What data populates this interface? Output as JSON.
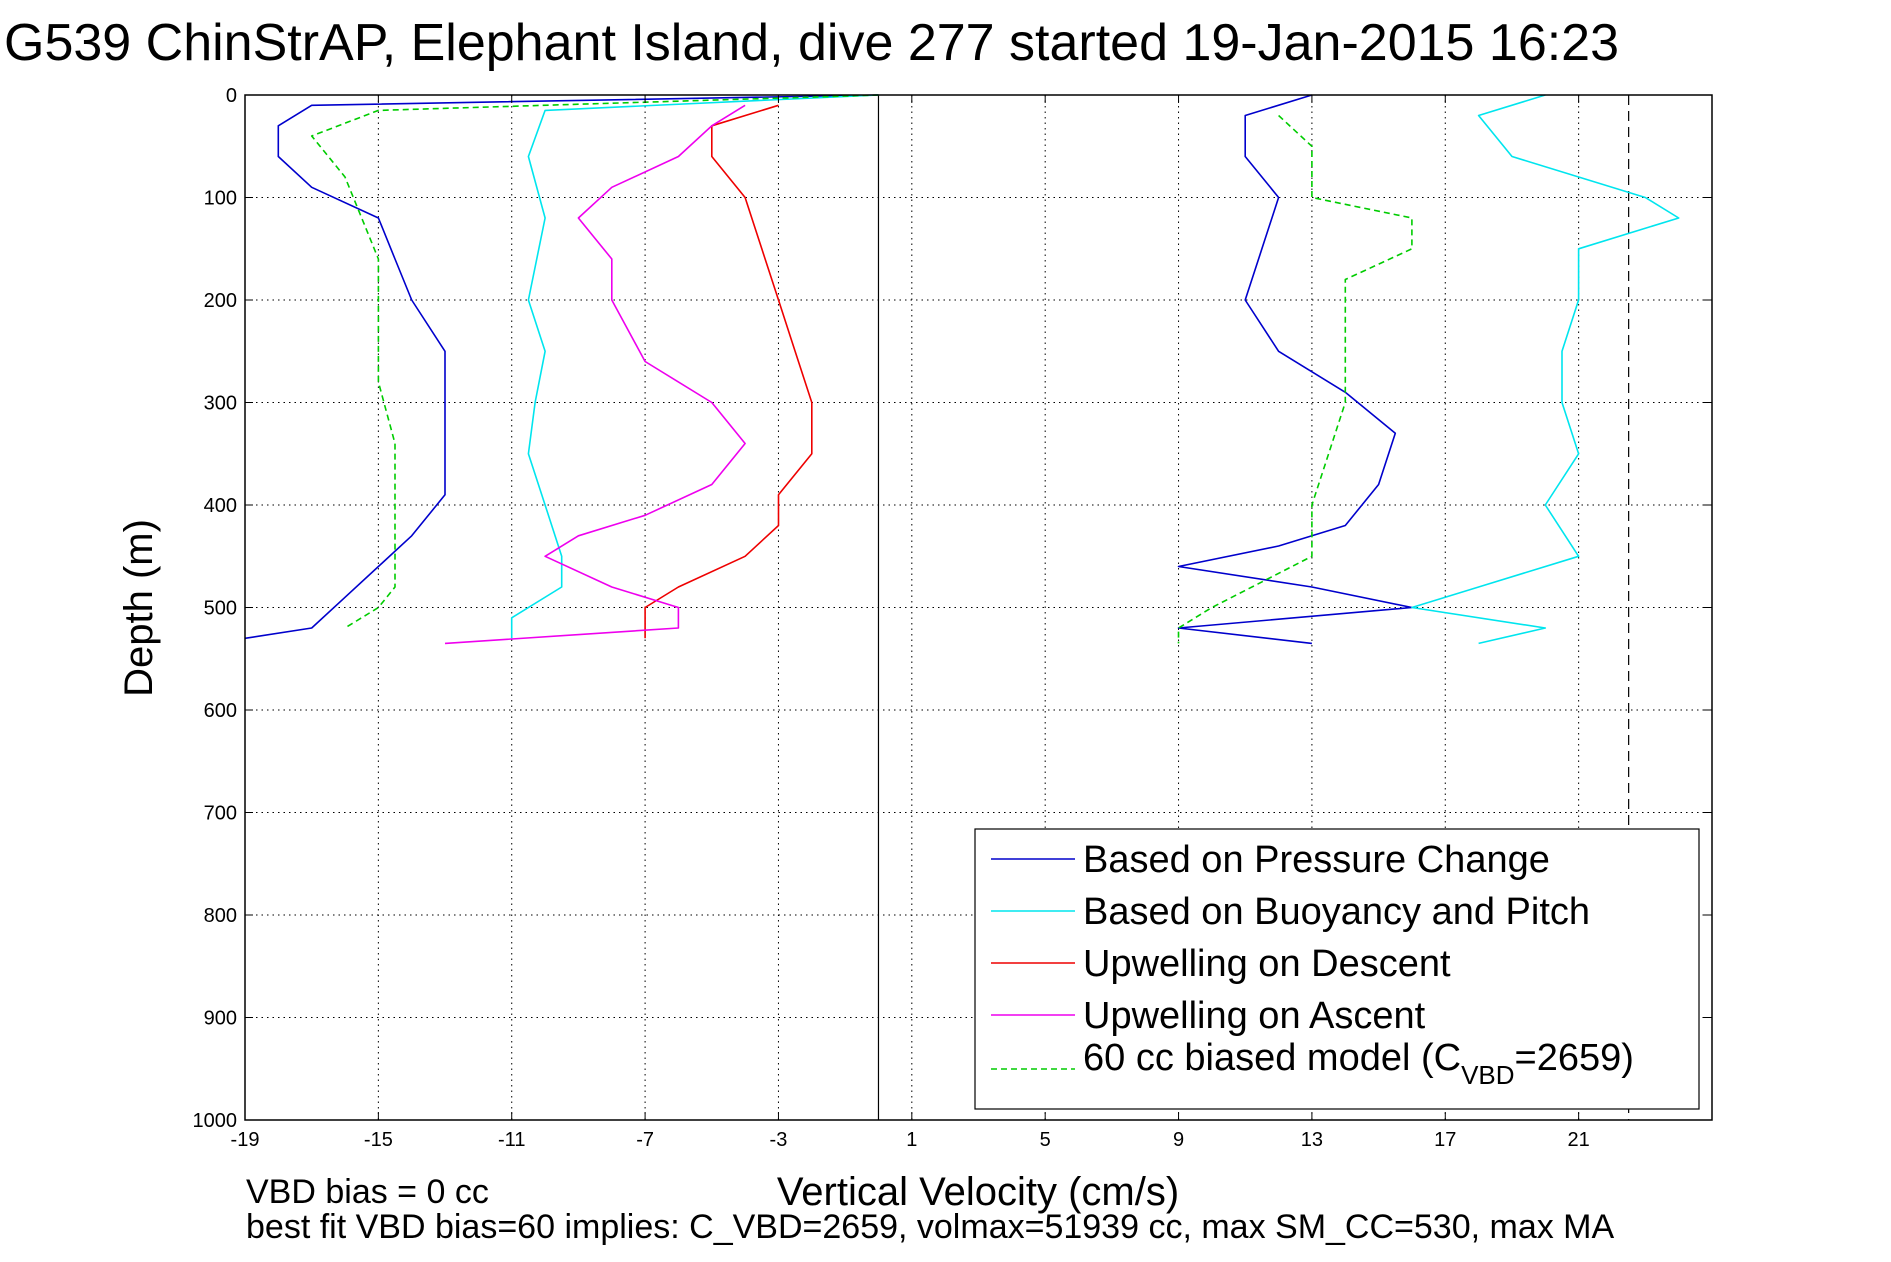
{
  "chart_data": {
    "type": "line",
    "title": "G539 ChinStrAP, Elephant Island, dive 277 started 19-Jan-2015 16:23",
    "xlabel": "Vertical Velocity (cm/s)",
    "ylabel": "Depth (m)",
    "xlim": [
      -19,
      25
    ],
    "ylim": [
      0,
      1000
    ],
    "y_reversed": true,
    "grid": true,
    "x_ticks": [
      -19,
      -15,
      -11,
      -7,
      -3,
      1,
      5,
      9,
      13,
      17,
      21
    ],
    "y_ticks": [
      0,
      100,
      200,
      300,
      400,
      500,
      600,
      700,
      800,
      900,
      1000
    ],
    "reference_lines": {
      "solid_x": 0,
      "dashed_x": 22.5
    },
    "legend_placement": "bottom-right",
    "colors": {
      "pressure": "#0000cc",
      "buoyancy": "#00e5ee",
      "descent": "#ee0000",
      "ascent": "#ee00ee",
      "model": "#00cc00"
    },
    "legend": [
      {
        "key": "pressure",
        "label": "Based on Pressure Change",
        "style": "solid"
      },
      {
        "key": "buoyancy",
        "label": "Based on Buoyancy and Pitch",
        "style": "solid"
      },
      {
        "key": "descent",
        "label": "Upwelling on Descent",
        "style": "solid"
      },
      {
        "key": "ascent",
        "label": "Upwelling on Ascent",
        "style": "solid"
      },
      {
        "key": "model",
        "label": "60 cc biased model (C",
        "sub": "VBD",
        "label_end": "=2659)",
        "style": "dashed"
      }
    ],
    "series": [
      {
        "key": "pressure",
        "name": "Based on Pressure Change",
        "part": "descent",
        "points": [
          [
            0,
            0
          ],
          [
            -17,
            10
          ],
          [
            -18,
            30
          ],
          [
            -18,
            60
          ],
          [
            -17,
            90
          ],
          [
            -15,
            120
          ],
          [
            -14.5,
            160
          ],
          [
            -14,
            200
          ],
          [
            -13,
            250
          ],
          [
            -13,
            300
          ],
          [
            -13,
            350
          ],
          [
            -13,
            390
          ],
          [
            -14,
            430
          ],
          [
            -15,
            460
          ],
          [
            -16,
            490
          ],
          [
            -17,
            520
          ],
          [
            -19,
            530
          ]
        ]
      },
      {
        "key": "pressure",
        "name": "Based on Pressure Change",
        "part": "ascent",
        "points": [
          [
            13,
            0
          ],
          [
            11,
            20
          ],
          [
            11,
            60
          ],
          [
            12,
            100
          ],
          [
            11.5,
            150
          ],
          [
            11,
            200
          ],
          [
            12,
            250
          ],
          [
            14,
            290
          ],
          [
            15.5,
            330
          ],
          [
            15,
            380
          ],
          [
            14,
            420
          ],
          [
            12,
            440
          ],
          [
            9,
            460
          ],
          [
            13,
            480
          ],
          [
            16,
            500
          ],
          [
            9,
            520
          ],
          [
            13,
            535
          ]
        ]
      },
      {
        "key": "buoyancy",
        "name": "Based on Buoyancy and Pitch",
        "part": "descent",
        "points": [
          [
            0,
            0
          ],
          [
            -10,
            15
          ],
          [
            -10.5,
            60
          ],
          [
            -10,
            120
          ],
          [
            -10.5,
            200
          ],
          [
            -10,
            250
          ],
          [
            -10.3,
            300
          ],
          [
            -10.5,
            350
          ],
          [
            -10,
            400
          ],
          [
            -9.5,
            450
          ],
          [
            -9.5,
            480
          ],
          [
            -11,
            510
          ],
          [
            -11,
            530
          ]
        ]
      },
      {
        "key": "buoyancy",
        "name": "Based on Buoyancy and Pitch",
        "part": "ascent",
        "points": [
          [
            20,
            0
          ],
          [
            18,
            20
          ],
          [
            19,
            60
          ],
          [
            23,
            100
          ],
          [
            24,
            120
          ],
          [
            21,
            150
          ],
          [
            21,
            200
          ],
          [
            20.5,
            250
          ],
          [
            20.5,
            300
          ],
          [
            21,
            350
          ],
          [
            20,
            400
          ],
          [
            21,
            450
          ],
          [
            18,
            480
          ],
          [
            16,
            500
          ],
          [
            20,
            520
          ],
          [
            18,
            535
          ]
        ]
      },
      {
        "key": "descent",
        "name": "Upwelling on Descent",
        "part": "descent",
        "points": [
          [
            -3,
            10
          ],
          [
            -5,
            30
          ],
          [
            -5,
            60
          ],
          [
            -4,
            100
          ],
          [
            -3.5,
            150
          ],
          [
            -3,
            200
          ],
          [
            -2.5,
            250
          ],
          [
            -2,
            300
          ],
          [
            -2,
            350
          ],
          [
            -3,
            390
          ],
          [
            -3,
            420
          ],
          [
            -4,
            450
          ],
          [
            -6,
            480
          ],
          [
            -7,
            500
          ],
          [
            -7,
            530
          ]
        ]
      },
      {
        "key": "ascent",
        "name": "Upwelling on Ascent",
        "part": "ascent",
        "points": [
          [
            -4,
            10
          ],
          [
            -5,
            30
          ],
          [
            -6,
            60
          ],
          [
            -8,
            90
          ],
          [
            -9,
            120
          ],
          [
            -8,
            160
          ],
          [
            -8,
            200
          ],
          [
            -7,
            260
          ],
          [
            -5,
            300
          ],
          [
            -4,
            340
          ],
          [
            -5,
            380
          ],
          [
            -7,
            410
          ],
          [
            -9,
            430
          ],
          [
            -10,
            450
          ],
          [
            -8,
            480
          ],
          [
            -6,
            500
          ],
          [
            -6,
            520
          ],
          [
            -13,
            535
          ]
        ]
      },
      {
        "key": "model",
        "name": "60 cc biased model (CVBD=2659)",
        "part": "descent",
        "points": [
          [
            0,
            0
          ],
          [
            -15,
            15
          ],
          [
            -17,
            40
          ],
          [
            -16,
            80
          ],
          [
            -15.5,
            120
          ],
          [
            -15,
            160
          ],
          [
            -15,
            220
          ],
          [
            -15,
            280
          ],
          [
            -14.5,
            340
          ],
          [
            -14.5,
            400
          ],
          [
            -14.5,
            450
          ],
          [
            -14.5,
            480
          ],
          [
            -15,
            500
          ],
          [
            -16,
            520
          ]
        ]
      },
      {
        "key": "model",
        "name": "60 cc biased model (CVBD=2659)",
        "part": "ascent",
        "points": [
          [
            12,
            20
          ],
          [
            13,
            50
          ],
          [
            13,
            100
          ],
          [
            16,
            120
          ],
          [
            16,
            150
          ],
          [
            14,
            180
          ],
          [
            14,
            250
          ],
          [
            14,
            300
          ],
          [
            13.5,
            350
          ],
          [
            13,
            400
          ],
          [
            13,
            450
          ],
          [
            10,
            500
          ],
          [
            9,
            520
          ],
          [
            9,
            535
          ]
        ]
      }
    ]
  },
  "footer": {
    "line1": "VBD bias = 0 cc",
    "line2": "best fit VBD bias=60 implies: C_VBD=2659, volmax=51939 cc, max SM_CC=530, max MA"
  }
}
